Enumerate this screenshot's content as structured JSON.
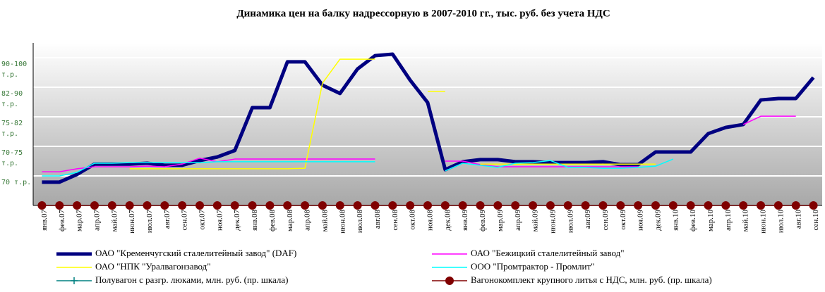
{
  "chart_data": {
    "type": "line",
    "title": "Динамика цен на балку надрессорную в 2007-2010 гг., тыс. руб. без учета НДС",
    "categories": [
      "янв.07",
      "фев.07",
      "мар.07",
      "апр.07",
      "май.07",
      "июн.07",
      "июл.07",
      "авг.07",
      "сен.07",
      "окт.07",
      "ноя.07",
      "дек.07",
      "янв.08",
      "фев.08",
      "мар.08",
      "апр.08",
      "май.08",
      "июн.08",
      "июл.08",
      "авг.08",
      "сен.08",
      "окт.08",
      "ноя.08",
      "дек.08",
      "янв.09",
      "фев.09",
      "мар.09",
      "апр.09",
      "май.09",
      "июн.09",
      "июл.09",
      "авг.09",
      "сен.09",
      "окт.09",
      "ноя.09",
      "дек.09",
      "янв.10",
      "фев.10",
      "мар.10",
      "апр.10",
      "май.10",
      "июн.10",
      "июл.10",
      "авг.10",
      "сен.10"
    ],
    "ylim": [
      0,
      5.5
    ],
    "yticks": [
      {
        "value": 1,
        "label": "70 т.р."
      },
      {
        "value": 2,
        "label": "70-75 т.р."
      },
      {
        "value": 3,
        "label": "75-82 т.р."
      },
      {
        "value": 4,
        "label": "82-90 т.р."
      },
      {
        "value": 5,
        "label": "90-100 т.р."
      }
    ],
    "grid": true,
    "series": [
      {
        "name": "ОАО \"Кременчугский сталелитейный завод\" (DAF)",
        "color": "#000080",
        "width": 5,
        "values": [
          0.79,
          0.79,
          1.05,
          1.4,
          1.4,
          1.4,
          1.43,
          1.36,
          1.36,
          1.52,
          1.64,
          1.86,
          3.31,
          3.31,
          4.86,
          4.86,
          4.07,
          3.79,
          4.62,
          5.07,
          5.12,
          4.24,
          3.48,
          1.21,
          1.48,
          1.55,
          1.55,
          1.48,
          1.48,
          1.45,
          1.45,
          1.45,
          1.48,
          1.38,
          1.38,
          1.81,
          1.81,
          1.81,
          2.43,
          2.64,
          2.74,
          3.57,
          3.62,
          3.62,
          4.33
        ]
      },
      {
        "name": "ОАО \"Бежицкий сталелитейный завод\"",
        "color": "#ff00ff",
        "width": 1.5,
        "values": [
          1.14,
          1.14,
          1.24,
          1.31,
          1.31,
          1.31,
          1.33,
          1.31,
          1.4,
          1.6,
          1.48,
          1.57,
          1.57,
          1.57,
          1.57,
          1.57,
          1.57,
          1.57,
          1.57,
          1.57,
          null,
          null,
          null,
          1.5,
          1.5,
          1.38,
          1.31,
          1.31,
          1.31,
          1.31,
          1.31,
          1.31,
          1.31,
          1.31,
          1.31,
          null,
          null,
          null,
          null,
          null,
          2.74,
          3.02,
          3.02,
          3.02,
          null
        ]
      },
      {
        "name": "ОАО \"НПК \"Уралвагонзавод\"",
        "color": "#ffff00",
        "width": 1.5,
        "values": [
          null,
          null,
          null,
          null,
          null,
          1.24,
          1.24,
          1.24,
          1.24,
          1.24,
          1.24,
          1.24,
          1.24,
          1.24,
          1.24,
          1.26,
          4.14,
          4.95,
          4.95,
          4.95,
          null,
          null,
          3.86,
          3.86,
          null,
          1.4,
          1.4,
          1.4,
          1.4,
          1.4,
          1.4,
          1.4,
          1.4,
          1.4,
          1.4,
          1.4,
          null,
          null,
          null,
          null,
          null,
          null,
          null,
          null,
          null
        ]
      },
      {
        "name": "ООО \"Промтрактор - Промлит\"",
        "color": "#00ffff",
        "width": 1.5,
        "values": [
          1.0,
          1.0,
          1.12,
          1.43,
          1.43,
          1.45,
          1.45,
          1.45,
          1.45,
          1.45,
          1.48,
          1.48,
          1.48,
          1.48,
          1.48,
          1.48,
          1.48,
          1.48,
          1.48,
          1.48,
          null,
          null,
          null,
          1.17,
          1.43,
          1.36,
          1.29,
          1.43,
          1.45,
          1.52,
          1.29,
          1.29,
          1.26,
          1.26,
          1.29,
          1.33,
          1.57,
          null,
          null,
          null,
          null,
          null,
          null,
          null,
          null
        ]
      },
      {
        "name": "Полувагон с разгр. люками, млн. руб. (пр. шкала)",
        "color": "#008080",
        "width": 1.5,
        "marker": "plus",
        "values": [
          0,
          0,
          0,
          0,
          0,
          0,
          0,
          0,
          0,
          0,
          0,
          0,
          0,
          0,
          0,
          0,
          0,
          0,
          0,
          0,
          0,
          0,
          0,
          0,
          0,
          0,
          0,
          0,
          0,
          0,
          0,
          0,
          0,
          0,
          0,
          0,
          0,
          0,
          0,
          0,
          0,
          0,
          0,
          0,
          0
        ]
      },
      {
        "name": "Вагонокомплект крупного литья с НДС, млн. руб. (пр. шкала)",
        "color": "#800000",
        "width": 1.5,
        "marker": "circle",
        "values": [
          0,
          0,
          0,
          0,
          0,
          0,
          0,
          0,
          0,
          0,
          0,
          0,
          0,
          0,
          0,
          0,
          0,
          0,
          0,
          0,
          0,
          0,
          0,
          0,
          0,
          0,
          0,
          0,
          0,
          0,
          0,
          0,
          0,
          0,
          0,
          0,
          0,
          0,
          0,
          0,
          0,
          0,
          0,
          0,
          0
        ]
      }
    ]
  }
}
